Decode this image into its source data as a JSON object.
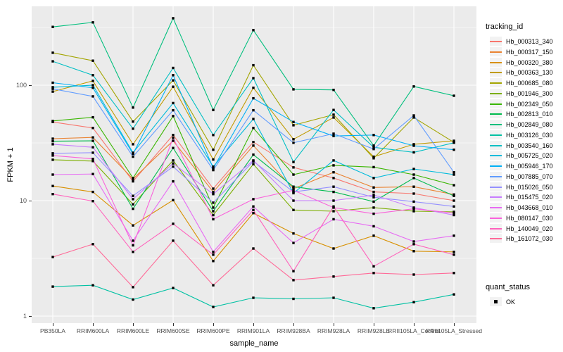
{
  "figure": {
    "background": "#FFFFFF",
    "panel_background": "#EBEBEB",
    "grid_color": "#FFFFFF",
    "tick_label_color": "#4D4D4D",
    "title_color": "#000000",
    "legend_key_background": "#F2F2F2"
  },
  "axes": {
    "x": {
      "title": "sample_name"
    },
    "y": {
      "title": "FPKM + 1",
      "scale": "log10",
      "tick_labels": [
        "100",
        "10",
        "1"
      ]
    }
  },
  "legends": {
    "tracking": {
      "title": "tracking_id"
    },
    "quant": {
      "title": "quant_status",
      "item_label": "OK",
      "item_shape": "black-square"
    }
  },
  "chart_data": {
    "type": "line",
    "xlabel": "sample_name",
    "ylabel": "FPKM + 1",
    "y_scale": "log10",
    "y_ticks": [
      1,
      10,
      100
    ],
    "y_minor_ticks": [
      3.162,
      31.62,
      316.2
    ],
    "ylim": [
      1,
      620
    ],
    "grid": true,
    "legend_position": "right",
    "point_shape": "square",
    "point_color": "#000000",
    "quant_status": "OK",
    "x_categories": [
      "PB350LA",
      "RRIM600LA",
      "RRIM600LE",
      "RRIM600SE",
      "RRIM600PE",
      "RRIM901LA",
      "RRIM928BA",
      "RRIM928LA",
      "RRIM928LE",
      "RRII105LA_Control",
      "RRII105LA_Stressed"
    ],
    "series": [
      {
        "name": "Hb_000313_340",
        "color": "#F8766D",
        "values": [
          48,
          42.6,
          14.7,
          37,
          12.7,
          32.2,
          19.4,
          15.7,
          11.9,
          11.5,
          10
        ]
      },
      {
        "name": "Hb_000317_150",
        "color": "#EA8331",
        "values": [
          34.4,
          35.3,
          15.4,
          33,
          11.9,
          30,
          12.7,
          17.6,
          13,
          13.2,
          11.3
        ]
      },
      {
        "name": "Hb_000320_380",
        "color": "#D89000",
        "values": [
          13.4,
          11.9,
          6.1,
          10.1,
          3.0,
          7.8,
          5.2,
          3.85,
          4.97,
          3.65,
          3.6
        ]
      },
      {
        "name": "Hb_000363_130",
        "color": "#C09B00",
        "values": [
          88,
          109,
          30.8,
          97,
          22.7,
          95,
          34,
          52.5,
          24,
          30.8,
          33
        ]
      },
      {
        "name": "Hb_000685_080",
        "color": "#A3A500",
        "values": [
          191,
          163,
          48.4,
          110,
          27.6,
          149,
          45,
          55.5,
          23.3,
          52.5,
          32
        ]
      },
      {
        "name": "Hb_001946_300",
        "color": "#7CAE00",
        "values": [
          22.6,
          22,
          9.3,
          22.3,
          7.5,
          20.7,
          8.3,
          8.1,
          8.7,
          8.1,
          8.0
        ]
      },
      {
        "name": "Hb_002349_050",
        "color": "#39B600",
        "values": [
          49,
          52.7,
          15.7,
          54,
          8.7,
          42.6,
          16.8,
          20.2,
          19.5,
          16.8,
          13.6
        ]
      },
      {
        "name": "Hb_002813_010",
        "color": "#00BB4E",
        "values": [
          32.7,
          33,
          8.5,
          28.6,
          8.1,
          25,
          13.2,
          11.9,
          9.8,
          15.7,
          11
        ]
      },
      {
        "name": "Hb_002849_080",
        "color": "#00BF7D",
        "values": [
          320,
          350,
          64,
          380,
          61,
          300,
          92,
          91,
          30,
          97.5,
          81
        ]
      },
      {
        "name": "Hb_003126_030",
        "color": "#00C1A3",
        "values": [
          1.8,
          1.85,
          1.39,
          1.75,
          1.2,
          1.44,
          1.41,
          1.44,
          1.17,
          1.32,
          1.54
        ]
      },
      {
        "name": "Hb_003540_160",
        "color": "#00BFC4",
        "values": [
          161,
          122,
          42,
          141,
          37,
          115,
          21.6,
          61,
          29,
          26.2,
          31.7
        ]
      },
      {
        "name": "Hb_005725_020",
        "color": "#00BBDC",
        "values": [
          96,
          100,
          26,
          70,
          19.7,
          51,
          11.6,
          22.3,
          15.7,
          18.8,
          16.8
        ]
      },
      {
        "name": "Hb_005946_170",
        "color": "#00B0F6",
        "values": [
          105,
          95,
          25.4,
          122,
          19.1,
          77,
          48,
          36.3,
          37,
          29.9,
          27.6
        ]
      },
      {
        "name": "Hb_007885_070",
        "color": "#619CFF",
        "values": [
          93,
          80,
          24,
          60.7,
          18.4,
          60.7,
          31.7,
          38,
          28,
          54.7,
          17.6
        ]
      },
      {
        "name": "Hb_015026_050",
        "color": "#9590FF",
        "values": [
          25.7,
          26,
          11,
          19.7,
          9.6,
          21.9,
          11.9,
          13.2,
          10.7,
          9.8,
          8.9
        ]
      },
      {
        "name": "Hb_015475_020",
        "color": "#C77CFF",
        "values": [
          30.8,
          29,
          10.3,
          21,
          11.4,
          22.3,
          10,
          10,
          11.2,
          8.7,
          7.5
        ]
      },
      {
        "name": "Hb_043668_010",
        "color": "#E76BF3",
        "values": [
          16.8,
          17,
          4.5,
          14.7,
          3.6,
          8.9,
          4.3,
          6.9,
          6.0,
          4.43,
          4.97
        ]
      },
      {
        "name": "Hb_080147_030",
        "color": "#FA62DB",
        "values": [
          24.6,
          23,
          4.1,
          35,
          6.9,
          10.3,
          12.3,
          8.7,
          7.7,
          8.5,
          7.8
        ]
      },
      {
        "name": "Hb_140049_020",
        "color": "#FF62BC",
        "values": [
          11.4,
          9.9,
          3.6,
          6.3,
          3.4,
          8.3,
          2.45,
          8.9,
          2.7,
          4.2,
          3.4
        ]
      },
      {
        "name": "Hb_161072_030",
        "color": "#FF6A98",
        "values": [
          3.25,
          4.2,
          1.78,
          4.5,
          1.85,
          3.85,
          2.05,
          2.2,
          2.36,
          2.29,
          2.36
        ]
      }
    ]
  }
}
